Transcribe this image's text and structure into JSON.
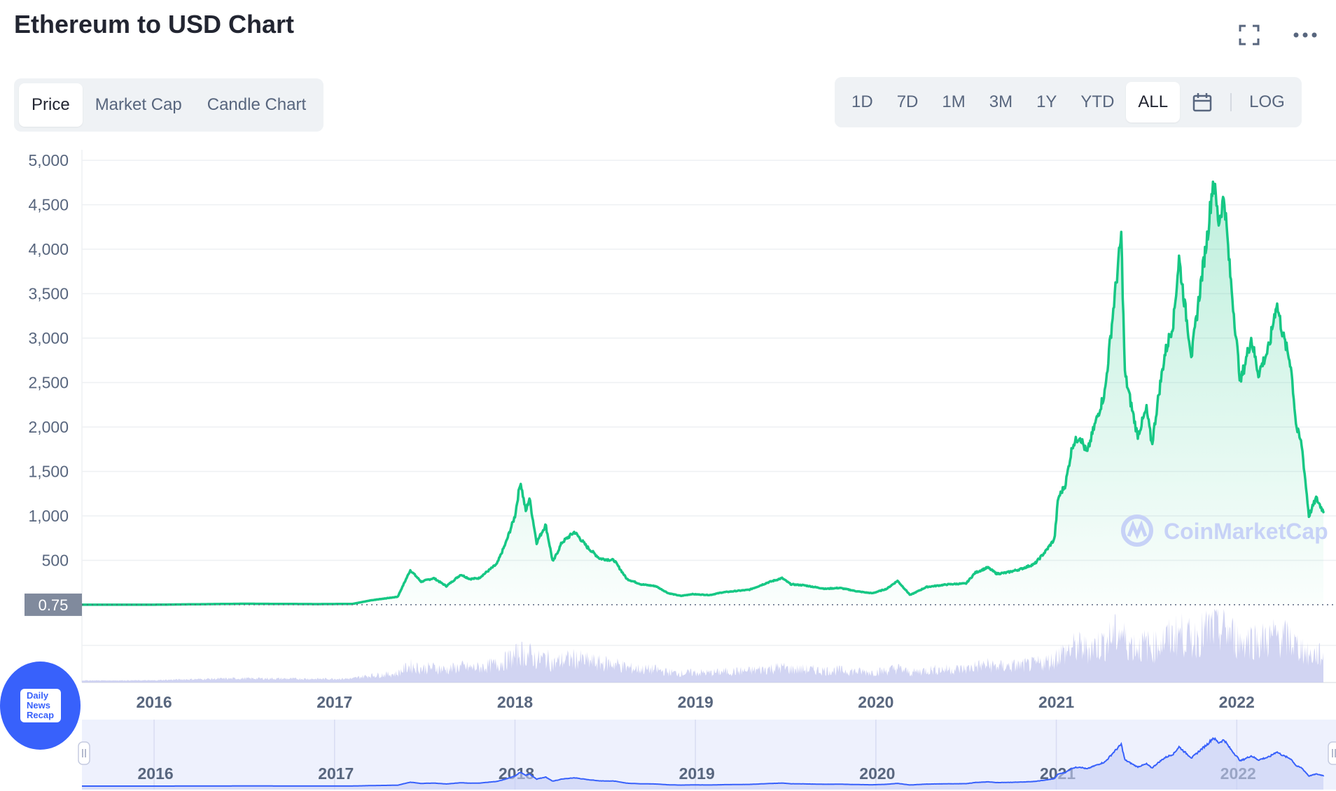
{
  "header": {
    "title": "Ethereum to USD Chart"
  },
  "tabs": [
    {
      "label": "Price",
      "active": true
    },
    {
      "label": "Market Cap",
      "active": false
    },
    {
      "label": "Candle Chart",
      "active": false
    }
  ],
  "ranges": [
    {
      "label": "1D",
      "active": false
    },
    {
      "label": "7D",
      "active": false
    },
    {
      "label": "1M",
      "active": false
    },
    {
      "label": "3M",
      "active": false
    },
    {
      "label": "1Y",
      "active": false
    },
    {
      "label": "YTD",
      "active": false
    },
    {
      "label": "ALL",
      "active": true
    }
  ],
  "log_label": "LOG",
  "icons": {
    "fullscreen": "fullscreen-icon",
    "more": "more-icon",
    "calendar": "calendar-icon"
  },
  "colors": {
    "line": "#16c784",
    "fill": "#16c784",
    "volume": "#c5c9ef",
    "navigator_line": "#3861fb",
    "navigator_bg": "#eef1fd",
    "axis_text": "#58667e",
    "accent": "#3861fb"
  },
  "watermark": "CoinMarketCap",
  "current_value_label": "0.75",
  "badge": {
    "text": "Daily\nNews\nRecap"
  },
  "chart_data": {
    "type": "area",
    "title": "",
    "xlabel": "",
    "ylabel": "",
    "ylim": [
      0,
      5000
    ],
    "y_ticks": [
      "5,000",
      "4,500",
      "4,000",
      "3,500",
      "3,000",
      "2,500",
      "2,000",
      "1,500",
      "1,000",
      "500"
    ],
    "x_ticks": [
      {
        "label": "2016",
        "t": 2016.0
      },
      {
        "label": "2017",
        "t": 2017.0
      },
      {
        "label": "2018",
        "t": 2018.0
      },
      {
        "label": "2019",
        "t": 2019.0
      },
      {
        "label": "2020",
        "t": 2020.0
      },
      {
        "label": "2021",
        "t": 2021.0
      },
      {
        "label": "2022",
        "t": 2022.0
      }
    ],
    "xlim": [
      2015.6,
      2022.55
    ],
    "series": [
      {
        "points": [
          [
            2015.6,
            0.75
          ],
          [
            2016.0,
            1
          ],
          [
            2016.5,
            12
          ],
          [
            2016.9,
            8
          ],
          [
            2017.1,
            10
          ],
          [
            2017.2,
            50
          ],
          [
            2017.35,
            90
          ],
          [
            2017.42,
            390
          ],
          [
            2017.48,
            260
          ],
          [
            2017.55,
            300
          ],
          [
            2017.62,
            210
          ],
          [
            2017.7,
            340
          ],
          [
            2017.75,
            290
          ],
          [
            2017.8,
            300
          ],
          [
            2017.9,
            460
          ],
          [
            2017.95,
            700
          ],
          [
            2018.0,
            1000
          ],
          [
            2018.03,
            1390
          ],
          [
            2018.06,
            1050
          ],
          [
            2018.08,
            1200
          ],
          [
            2018.12,
            700
          ],
          [
            2018.17,
            900
          ],
          [
            2018.21,
            480
          ],
          [
            2018.26,
            700
          ],
          [
            2018.33,
            820
          ],
          [
            2018.4,
            650
          ],
          [
            2018.47,
            520
          ],
          [
            2018.55,
            500
          ],
          [
            2018.62,
            290
          ],
          [
            2018.7,
            230
          ],
          [
            2018.78,
            210
          ],
          [
            2018.85,
            130
          ],
          [
            2018.92,
            100
          ],
          [
            2018.98,
            120
          ],
          [
            2019.08,
            110
          ],
          [
            2019.15,
            140
          ],
          [
            2019.3,
            170
          ],
          [
            2019.4,
            250
          ],
          [
            2019.48,
            300
          ],
          [
            2019.53,
            230
          ],
          [
            2019.6,
            220
          ],
          [
            2019.72,
            180
          ],
          [
            2019.8,
            190
          ],
          [
            2019.9,
            150
          ],
          [
            2019.98,
            130
          ],
          [
            2020.06,
            180
          ],
          [
            2020.12,
            270
          ],
          [
            2020.19,
            110
          ],
          [
            2020.28,
            200
          ],
          [
            2020.4,
            230
          ],
          [
            2020.5,
            240
          ],
          [
            2020.55,
            360
          ],
          [
            2020.62,
            420
          ],
          [
            2020.67,
            350
          ],
          [
            2020.72,
            360
          ],
          [
            2020.8,
            400
          ],
          [
            2020.88,
            460
          ],
          [
            2020.94,
            600
          ],
          [
            2020.99,
            740
          ],
          [
            2021.01,
            1200
          ],
          [
            2021.05,
            1350
          ],
          [
            2021.09,
            1800
          ],
          [
            2021.13,
            1900
          ],
          [
            2021.17,
            1700
          ],
          [
            2021.21,
            2000
          ],
          [
            2021.27,
            2400
          ],
          [
            2021.32,
            3400
          ],
          [
            2021.36,
            4150
          ],
          [
            2021.38,
            2600
          ],
          [
            2021.41,
            2300
          ],
          [
            2021.45,
            1900
          ],
          [
            2021.5,
            2200
          ],
          [
            2021.53,
            1800
          ],
          [
            2021.57,
            2400
          ],
          [
            2021.6,
            2800
          ],
          [
            2021.65,
            3200
          ],
          [
            2021.68,
            3900
          ],
          [
            2021.71,
            3400
          ],
          [
            2021.75,
            2800
          ],
          [
            2021.8,
            3600
          ],
          [
            2021.84,
            4200
          ],
          [
            2021.87,
            4800
          ],
          [
            2021.9,
            4300
          ],
          [
            2021.93,
            4600
          ],
          [
            2021.96,
            3800
          ],
          [
            2022.02,
            2500
          ],
          [
            2022.08,
            3000
          ],
          [
            2022.12,
            2600
          ],
          [
            2022.18,
            2900
          ],
          [
            2022.22,
            3400
          ],
          [
            2022.26,
            3000
          ],
          [
            2022.3,
            2700
          ],
          [
            2022.33,
            2000
          ],
          [
            2022.36,
            1800
          ],
          [
            2022.4,
            1000
          ],
          [
            2022.44,
            1200
          ],
          [
            2022.48,
            1050
          ]
        ]
      }
    ]
  }
}
